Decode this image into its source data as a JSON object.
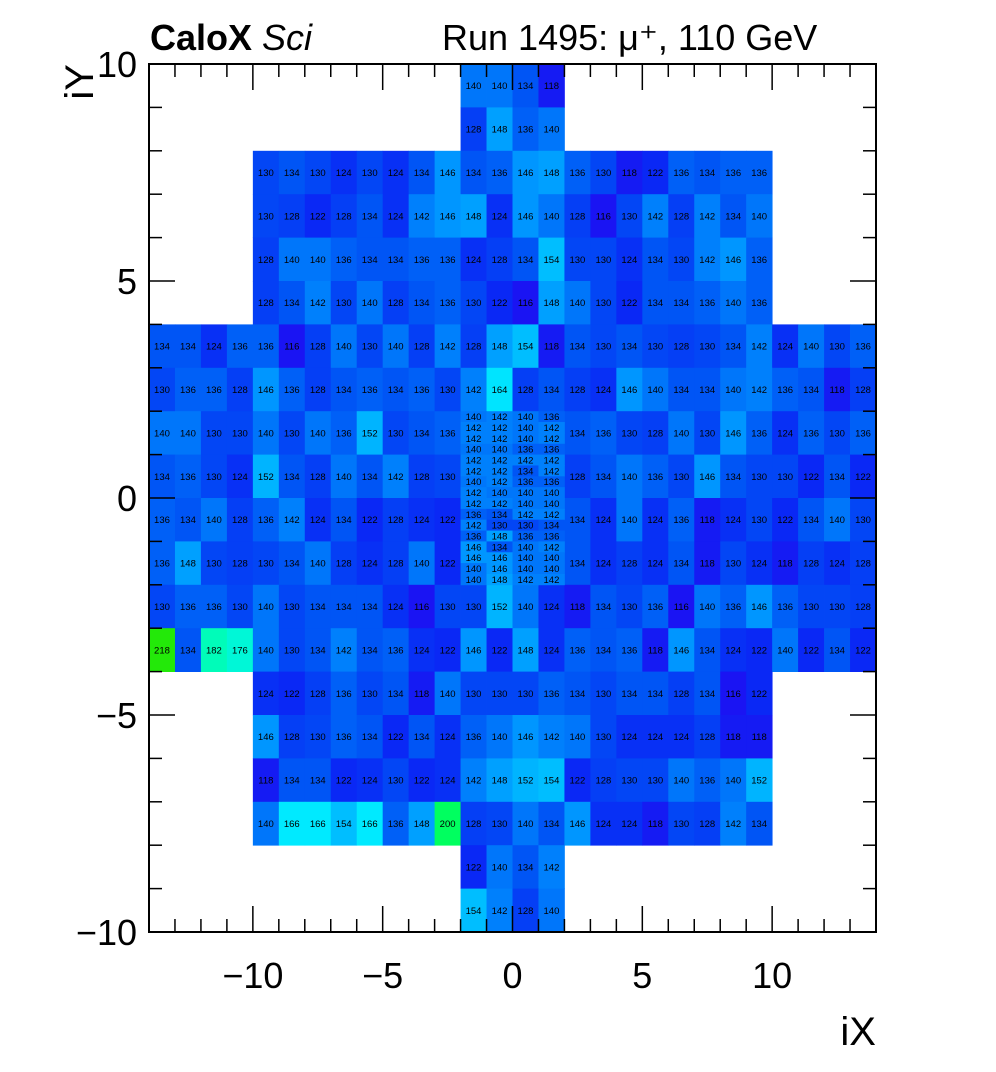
{
  "header": {
    "brand": "CaloX",
    "brand_sub": "Sci",
    "run_label": "Run 1495:   μ⁺, 110 GeV"
  },
  "chart_data": {
    "type": "heatmap",
    "title": "",
    "xlabel": "iX",
    "ylabel": "iY",
    "xlim": [
      -14,
      14
    ],
    "ylim": [
      -10,
      10
    ],
    "xticks": [
      "−10",
      "−5",
      "0",
      "5",
      "10"
    ],
    "yticks": [
      "−10",
      "−5",
      "0",
      "5",
      "10"
    ],
    "value_range": [
      110,
      220
    ],
    "colors": {
      "v_low": "#2a00f0",
      "v_mid": "#0055f5",
      "v_cyan": "#00e6ff",
      "v_high": "#00ff00"
    },
    "rows": [
      {
        "y": 9.5,
        "x0": -2,
        "w": 1,
        "values": [
          140,
          140,
          134,
          118
        ]
      },
      {
        "y": 8.5,
        "x0": -2,
        "w": 1,
        "values": [
          128,
          148,
          136,
          140
        ]
      },
      {
        "y": 7.5,
        "x0": -10,
        "w": 1,
        "values": [
          130,
          134,
          130,
          124,
          130,
          124,
          134,
          146,
          134,
          136,
          146,
          148,
          136,
          130,
          118,
          122,
          136,
          134,
          136,
          136
        ]
      },
      {
        "y": 6.5,
        "x0": -10,
        "w": 1,
        "values": [
          130,
          128,
          122,
          128,
          134,
          124,
          142,
          146,
          148,
          124,
          146,
          140,
          128,
          116,
          130,
          142,
          128,
          142,
          134,
          140
        ]
      },
      {
        "y": 5.5,
        "x0": -10,
        "w": 1,
        "values": [
          128,
          140,
          140,
          136,
          134,
          134,
          136,
          136,
          124,
          128,
          134,
          154,
          130,
          130,
          124,
          134,
          130,
          142,
          146,
          136
        ]
      },
      {
        "y": 4.5,
        "x0": -10,
        "w": 1,
        "values": [
          128,
          134,
          142,
          130,
          140,
          128,
          134,
          136,
          130,
          122,
          116,
          148,
          140,
          130,
          122,
          134,
          134,
          136,
          140,
          136
        ]
      },
      {
        "y": 3.5,
        "x0": -14,
        "w": 1,
        "values": [
          134,
          134,
          124,
          136,
          136,
          116,
          128,
          140,
          130,
          140,
          128,
          142,
          128,
          148,
          154,
          118,
          134,
          130,
          134,
          130,
          128,
          130,
          134,
          142,
          124,
          140,
          130,
          136
        ]
      },
      {
        "y": 2.5,
        "x0": -14,
        "w": 1,
        "values": [
          130,
          136,
          136,
          128,
          146,
          136,
          128,
          134,
          136,
          134,
          136,
          130,
          142,
          164,
          128,
          134,
          128,
          124,
          146,
          140,
          134,
          134,
          140,
          142,
          136,
          134,
          118,
          128
        ]
      },
      {
        "y": 1.5,
        "x0": -14,
        "w": 1,
        "values": [
          140,
          140,
          130,
          130,
          140,
          130,
          140,
          136,
          152,
          130,
          134,
          136,
          null,
          null,
          null,
          null,
          134,
          136,
          130,
          128,
          140,
          130,
          146,
          136,
          124,
          136,
          130,
          136
        ]
      },
      {
        "y": 0.5,
        "x0": -14,
        "w": 1,
        "values": [
          134,
          136,
          130,
          124,
          152,
          134,
          128,
          140,
          134,
          142,
          128,
          130,
          null,
          null,
          null,
          null,
          128,
          134,
          140,
          136,
          130,
          146,
          134,
          130,
          130,
          122,
          134,
          122
        ]
      },
      {
        "y": -0.5,
        "x0": -14,
        "w": 1,
        "values": [
          136,
          134,
          140,
          128,
          136,
          142,
          124,
          134,
          122,
          128,
          124,
          122,
          null,
          null,
          null,
          null,
          134,
          124,
          140,
          124,
          136,
          118,
          124,
          130,
          122,
          134,
          140,
          130
        ]
      },
      {
        "y": -1.5,
        "x0": -14,
        "w": 1,
        "values": [
          136,
          148,
          130,
          128,
          130,
          134,
          140,
          128,
          124,
          128,
          140,
          122,
          null,
          null,
          null,
          null,
          134,
          124,
          128,
          124,
          134,
          118,
          130,
          124,
          118,
          128,
          124,
          128
        ]
      },
      {
        "y": -2.5,
        "x0": -14,
        "w": 1,
        "values": [
          130,
          136,
          136,
          130,
          140,
          130,
          134,
          134,
          134,
          124,
          116,
          130,
          130,
          152,
          140,
          124,
          118,
          134,
          130,
          136,
          116,
          140,
          136,
          146,
          136,
          130,
          130,
          128
        ]
      },
      {
        "y": -3.5,
        "x0": -14,
        "w": 1,
        "values": [
          218,
          134,
          182,
          176,
          140,
          130,
          134,
          142,
          134,
          136,
          124,
          122,
          146,
          122,
          148,
          124,
          136,
          134,
          136,
          118,
          146,
          134,
          124,
          122,
          140,
          122,
          134,
          122
        ]
      },
      {
        "y": -4.5,
        "x0": -10,
        "w": 1,
        "values": [
          124,
          122,
          128,
          136,
          130,
          134,
          118,
          140,
          130,
          130,
          130,
          136,
          134,
          130,
          134,
          134,
          128,
          134,
          116,
          122
        ]
      },
      {
        "y": -5.5,
        "x0": -10,
        "w": 1,
        "values": [
          146,
          128,
          130,
          136,
          134,
          122,
          134,
          124,
          136,
          140,
          146,
          142,
          140,
          130,
          124,
          124,
          124,
          128,
          118,
          118
        ]
      },
      {
        "y": -6.5,
        "x0": -10,
        "w": 1,
        "values": [
          118,
          134,
          134,
          122,
          124,
          130,
          122,
          124,
          142,
          148,
          152,
          154,
          122,
          128,
          130,
          130,
          140,
          136,
          140,
          152
        ]
      },
      {
        "y": -7.5,
        "x0": -10,
        "w": 1,
        "values": [
          140,
          166,
          166,
          154,
          166,
          136,
          148,
          200,
          128,
          130,
          140,
          134,
          146,
          124,
          124,
          118,
          130,
          128,
          142,
          134
        ]
      },
      {
        "y": -8.5,
        "x0": -2,
        "w": 1,
        "values": [
          122,
          140,
          134,
          142
        ]
      },
      {
        "y": -9.5,
        "x0": -2,
        "w": 1,
        "values": [
          154,
          142,
          128,
          140
        ]
      },
      {
        "y": 1.75,
        "x0": -2,
        "w": 1,
        "h": 0.25,
        "values": [
          140,
          142,
          140,
          136
        ]
      },
      {
        "y": 1.25,
        "x0": -2,
        "w": 1,
        "h": 0.25,
        "values": [
          142,
          142,
          140,
          142
        ]
      },
      {
        "y": 0.75,
        "x0": -2,
        "w": 1,
        "h": 0.25,
        "values": [
          142,
          142,
          134,
          142
        ]
      },
      {
        "y": 0.25,
        "x0": -2,
        "w": 1,
        "h": 0.25,
        "values": [
          142,
          140,
          140,
          140
        ]
      },
      {
        "y": -0.25,
        "x0": -2,
        "w": 1,
        "h": 0.25,
        "values": [
          136,
          134,
          142,
          142
        ]
      },
      {
        "y": -0.75,
        "x0": -2,
        "w": 1,
        "h": 0.25,
        "values": [
          136,
          148,
          136,
          136
        ]
      },
      {
        "y": -1.25,
        "x0": -2,
        "w": 1,
        "h": 0.25,
        "values": [
          146,
          146,
          140,
          140
        ]
      },
      {
        "y": -1.75,
        "x0": -2,
        "w": 1,
        "h": 0.25,
        "values": [
          140,
          148,
          142,
          142
        ]
      },
      {
        "y": 1.5,
        "x0": -2,
        "w": 1,
        "h": 0.25,
        "values": [
          142,
          142,
          140,
          142
        ]
      },
      {
        "y": 1.0,
        "x0": -2,
        "w": 1,
        "h": 0.25,
        "values": [
          142,
          142,
          142,
          142
        ]
      },
      {
        "y": 0.5,
        "x0": -2,
        "w": 1,
        "h": 0.25,
        "values": [
          140,
          142,
          136,
          136
        ]
      },
      {
        "y": 0.0,
        "x0": -2,
        "w": 1,
        "h": 0.25,
        "values": [
          142,
          142,
          140,
          140
        ]
      },
      {
        "y": -0.5,
        "x0": -2,
        "w": 1,
        "h": 0.25,
        "values": [
          142,
          130,
          130,
          134
        ]
      },
      {
        "y": -1.0,
        "x0": -2,
        "w": 1,
        "h": 0.25,
        "values": [
          146,
          134,
          140,
          142
        ]
      },
      {
        "y": -1.5,
        "x0": -2,
        "w": 1,
        "h": 0.25,
        "values": [
          140,
          146,
          140,
          140
        ]
      },
      {
        "y": 2.0,
        "x0": -2,
        "w": 1,
        "h": 0.25,
        "values": [
          140,
          142,
          140,
          136
        ]
      },
      {
        "y": -2.0,
        "x0": -2,
        "w": 1,
        "h": 0.25,
        "values": [
          140,
          148,
          142,
          142
        ]
      },
      {
        "y": 1.0,
        "x0": -2,
        "w": 1,
        "h": 0.25,
        "values": [
          140,
          140,
          136,
          136
        ]
      },
      {
        "y": 0.0,
        "x0": -2,
        "w": 1,
        "h": 0.25,
        "values": [
          142,
          140,
          140,
          140
        ]
      },
      {
        "y": -1.0,
        "x0": -2,
        "w": 1,
        "h": 0.25,
        "values": [
          146,
          134,
          140,
          142
        ]
      }
    ]
  }
}
